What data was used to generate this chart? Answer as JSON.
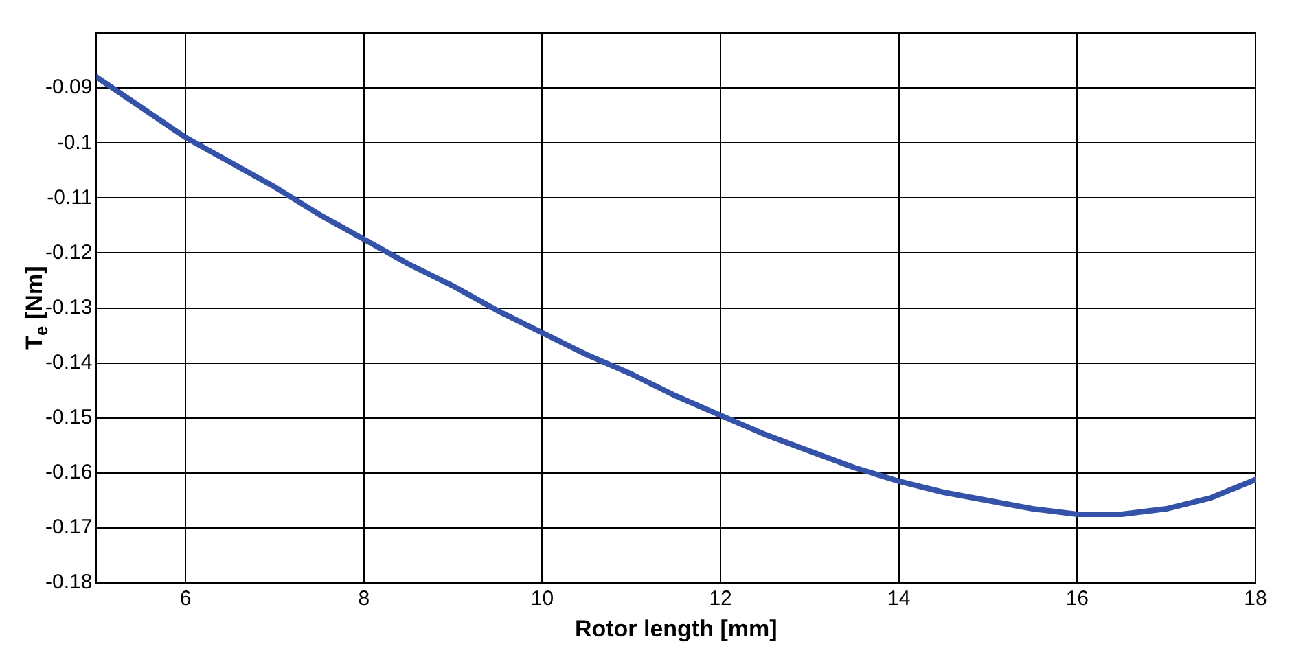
{
  "chart_data": {
    "type": "line",
    "xlabel": "Rotor length [mm]",
    "ylabel": "T$_{e}$ [Nm]",
    "x": [
      5,
      5.5,
      6,
      6.5,
      7,
      7.5,
      8,
      8.5,
      9,
      9.5,
      10,
      10.5,
      11,
      11.5,
      12,
      12.5,
      13,
      13.5,
      14,
      14.5,
      15,
      15.5,
      16,
      16.5,
      17,
      17.5,
      18
    ],
    "series": [
      {
        "color": "#3352a8",
        "values": [
          -0.088,
          -0.0935,
          -0.099,
          -0.1035,
          -0.108,
          -0.113,
          -0.1175,
          -0.122,
          -0.126,
          -0.1305,
          -0.1345,
          -0.1385,
          -0.142,
          -0.146,
          -0.1495,
          -0.153,
          -0.156,
          -0.159,
          -0.1615,
          -0.1635,
          -0.165,
          -0.1665,
          -0.1675,
          -0.1675,
          -0.1665,
          -0.1645,
          -0.1612
        ]
      }
    ],
    "xlim": [
      5,
      18
    ],
    "xticks": [
      6,
      8,
      10,
      12,
      14,
      16,
      18
    ],
    "ylim": [
      -0.18,
      -0.08
    ],
    "yticks": [
      -0.09,
      -0.1,
      -0.11,
      -0.12,
      -0.13,
      -0.14,
      -0.15,
      -0.16,
      -0.17,
      -0.18
    ],
    "grid": true,
    "legend": false,
    "marker": "none",
    "line_style": "solid"
  }
}
